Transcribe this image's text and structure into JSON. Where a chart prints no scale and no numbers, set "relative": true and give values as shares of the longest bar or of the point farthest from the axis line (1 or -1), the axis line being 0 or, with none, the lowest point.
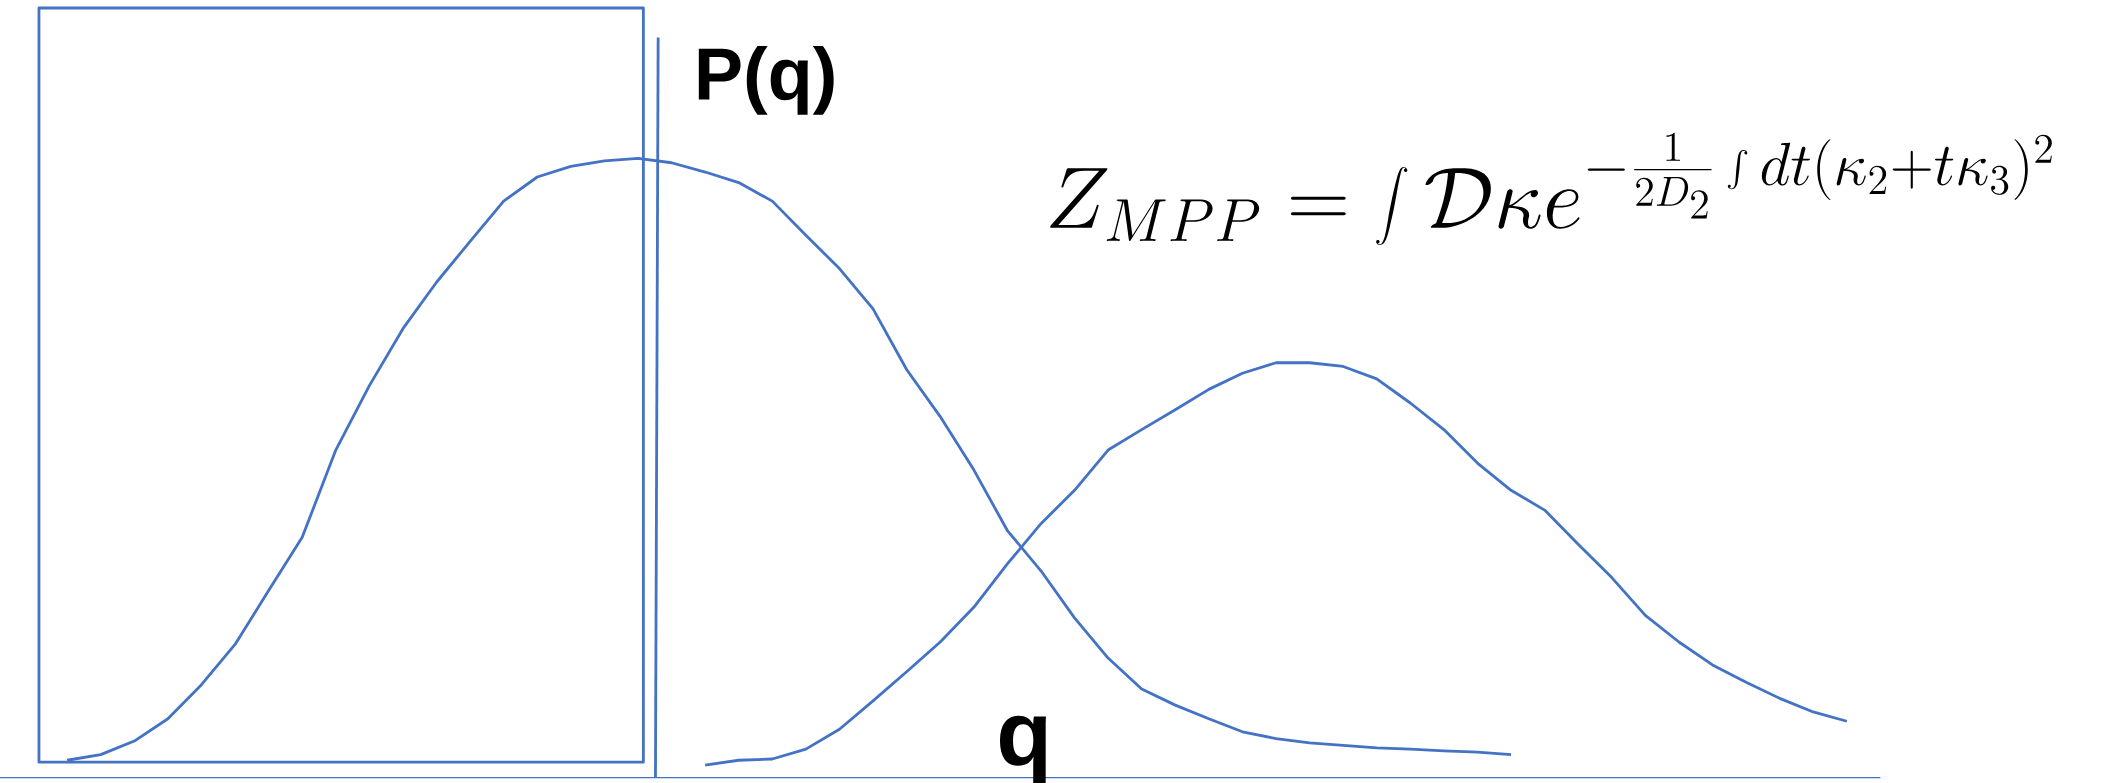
{
  "chart_data": {
    "type": "line",
    "relative": true,
    "xlabel": "q",
    "ylabel": "P(q)",
    "annotations": [
      "Z_{MPP} = \\int \\mathcal{D}\\kappa e^{-\\frac{1}{2D_2}\\int dt(\\kappa_2+t\\kappa_3)^2}"
    ],
    "categories": [
      null,
      null,
      null,
      null,
      null,
      null,
      null,
      null,
      null,
      null,
      null,
      null,
      null,
      null,
      null,
      null,
      null,
      null,
      null,
      null,
      null,
      null,
      null,
      null,
      null,
      null,
      null,
      null,
      null,
      null,
      null,
      null,
      null,
      null,
      null,
      null,
      null,
      null,
      null,
      null,
      null,
      null,
      null,
      null,
      null,
      null,
      null,
      null,
      null,
      null,
      null,
      null,
      null,
      null,
      null
    ],
    "series": [
      {
        "color": "#4472c4",
        "values": [
          null,
          0.028,
          0.037,
          0.059,
          0.095,
          0.15,
          0.215,
          0.302,
          0.388,
          0.529,
          0.633,
          0.725,
          0.8,
          0.866,
          0.931,
          0.97,
          0.987,
          0.996,
          1.0,
          0.993,
          0.978,
          0.961,
          0.931,
          0.876,
          0.822,
          0.757,
          0.659,
          0.583,
          0.497,
          0.399,
          0.334,
          0.258,
          0.193,
          0.143,
          0.117,
          0.095,
          0.074,
          0.063,
          0.056,
          0.052,
          0.048,
          0.046,
          0.043,
          0.041,
          0.037,
          null,
          null,
          null,
          null,
          null,
          null,
          null,
          null,
          null,
          null
        ]
      },
      {
        "color": "#4472c4",
        "values": [
          null,
          null,
          null,
          null,
          null,
          null,
          null,
          null,
          null,
          null,
          null,
          null,
          null,
          null,
          null,
          null,
          null,
          null,
          null,
          null,
          0.02,
          0.028,
          0.03,
          0.046,
          0.078,
          0.124,
          0.171,
          0.219,
          0.275,
          0.345,
          0.41,
          0.464,
          0.529,
          0.562,
          0.594,
          0.627,
          0.653,
          0.67,
          0.67,
          0.664,
          0.644,
          0.605,
          0.562,
          0.508,
          0.464,
          0.432,
          0.377,
          0.323,
          0.262,
          0.219,
          0.182,
          0.154,
          0.128,
          0.106,
          0.091
        ]
      }
    ],
    "tick_labels": false,
    "marker": "none",
    "line_style": "solid"
  }
}
